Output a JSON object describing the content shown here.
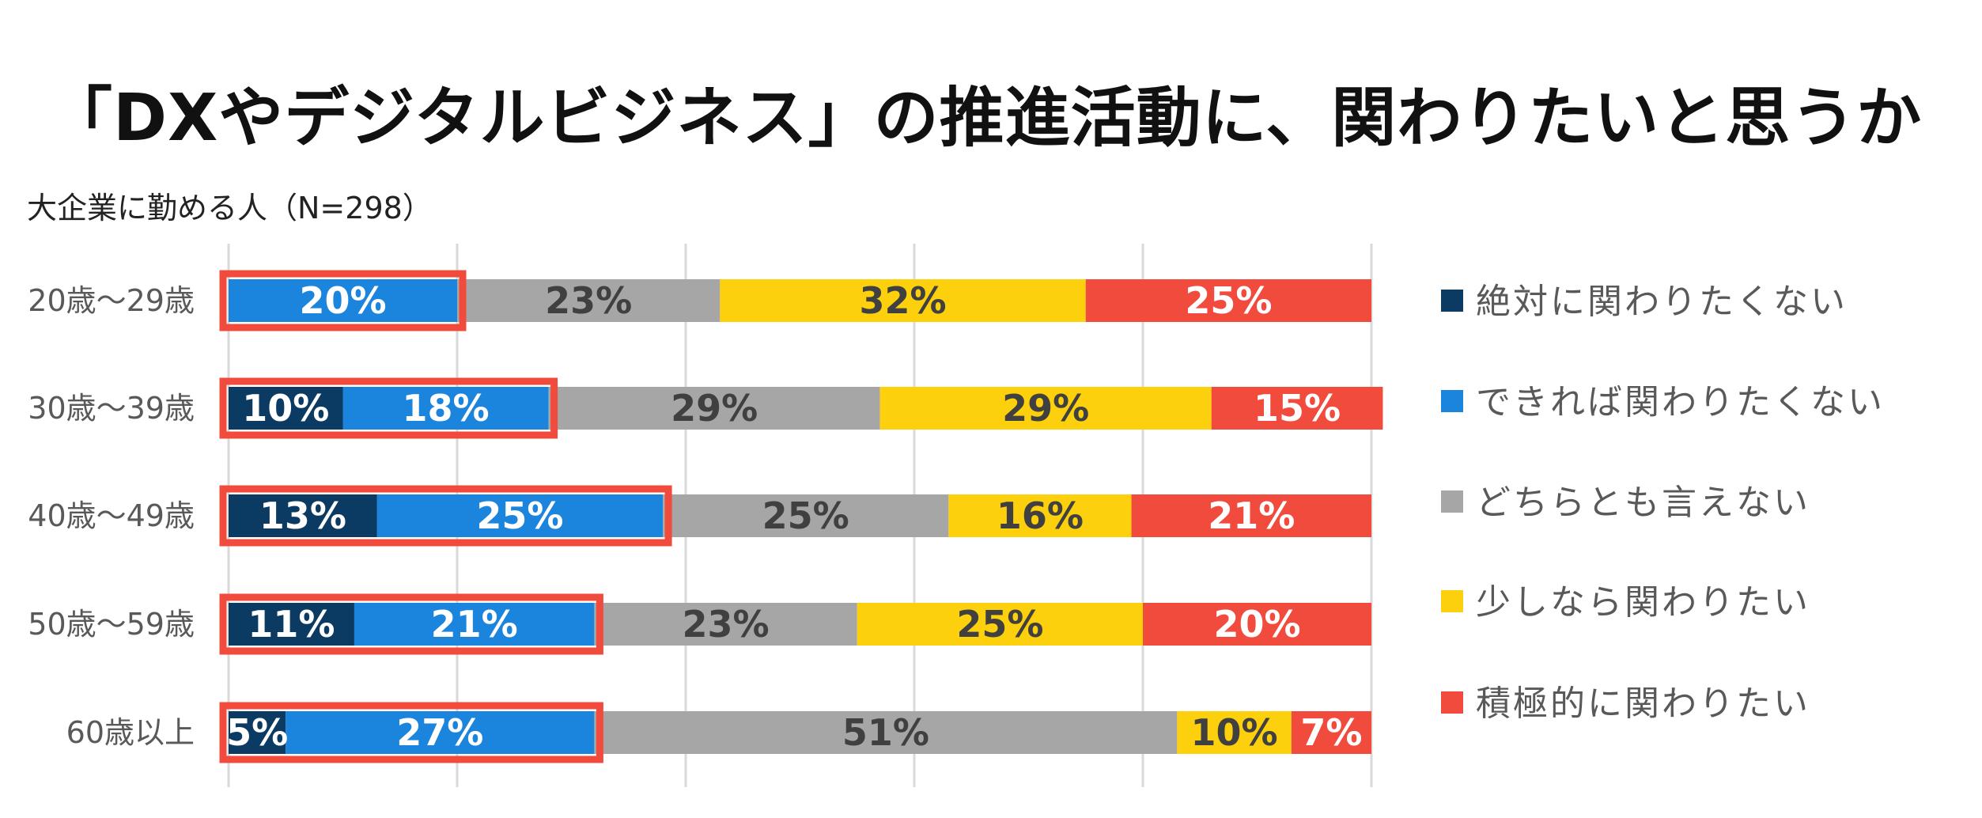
{
  "chart_data": {
    "type": "bar",
    "orientation": "horizontal",
    "stacked": true,
    "normalized": true,
    "title": "「DXやデジタルビジネス」の推進活動に、関わりたいと思うか",
    "subtitle": "大企業に勤める人（N=298）",
    "categories": [
      "20歳〜29歳",
      "30歳〜39歳",
      "40歳〜49歳",
      "50歳〜59歳",
      "60歳以上"
    ],
    "series": [
      {
        "name": "絶対に関わりたくない",
        "color": "#0b3a62",
        "values": [
          0,
          10,
          13,
          11,
          5
        ],
        "labels": [
          "",
          "10%",
          "13%",
          "11%",
          "5%"
        ],
        "label_color": "#ffffff"
      },
      {
        "name": "できれば関わりたくない",
        "color": "#1b84dc",
        "values": [
          20,
          18,
          25,
          21,
          27
        ],
        "labels": [
          "20%",
          "18%",
          "25%",
          "21%",
          "27%"
        ],
        "label_color": "#ffffff"
      },
      {
        "name": "どちらとも言えない",
        "color": "#a6a6a6",
        "values": [
          23,
          29,
          25,
          23,
          51
        ],
        "labels": [
          "23%",
          "29%",
          "25%",
          "23%",
          "51%"
        ],
        "label_color": "#404040"
      },
      {
        "name": "少しなら関わりたい",
        "color": "#fcd00c",
        "values": [
          32,
          29,
          16,
          25,
          10
        ],
        "labels": [
          "32%",
          "29%",
          "16%",
          "25%",
          "10%"
        ],
        "label_color": "#404040"
      },
      {
        "name": "積極的に関わりたい",
        "color": "#f04b3c",
        "values": [
          25,
          15,
          21,
          20,
          7
        ],
        "labels": [
          "25%",
          "15%",
          "21%",
          "20%",
          "7%"
        ],
        "label_color": "#ffffff"
      }
    ],
    "highlight": {
      "series": [
        "絶対に関わりたくない",
        "できれば関わりたくない"
      ],
      "color": "#f04b3c"
    },
    "xlim": [
      0,
      100
    ],
    "grid": true,
    "legend_position": "right"
  }
}
